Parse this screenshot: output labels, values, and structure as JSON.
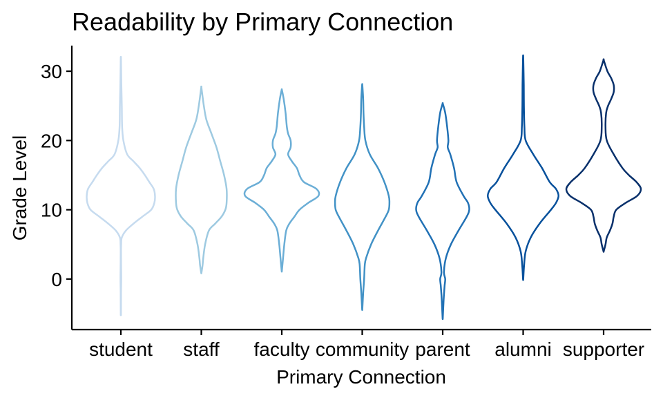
{
  "chart_data": {
    "type": "violin",
    "title": "Readability by Primary Connection",
    "xlabel": "Primary Connection",
    "ylabel": "Grade Level",
    "categories": [
      "student",
      "staff",
      "faculty",
      "community",
      "parent",
      "alumni",
      "supporter"
    ],
    "ylim": [
      -7.3,
      33.7
    ],
    "yticks": [
      0,
      10,
      20,
      30
    ],
    "grid": false,
    "legend": "none",
    "colors": [
      "#c6dbef",
      "#9ecae1",
      "#6baed6",
      "#4292c6",
      "#2171b5",
      "#08519c",
      "#08306b"
    ],
    "series": [
      {
        "category": "student",
        "min": -5,
        "max": 31.8,
        "profile": [
          [
            -5,
            0.2
          ],
          [
            -2,
            0.3
          ],
          [
            0,
            0.6
          ],
          [
            2,
            0.4
          ],
          [
            4,
            0.3
          ],
          [
            5,
            0.5
          ],
          [
            6,
            1.5
          ],
          [
            7,
            8
          ],
          [
            8,
            20
          ],
          [
            9,
            34
          ],
          [
            10,
            48
          ],
          [
            11,
            53
          ],
          [
            12,
            54
          ],
          [
            13,
            52
          ],
          [
            14,
            45
          ],
          [
            15,
            38
          ],
          [
            16,
            30
          ],
          [
            17,
            20
          ],
          [
            18,
            10
          ],
          [
            20,
            4
          ],
          [
            22,
            2
          ],
          [
            25,
            1.5
          ],
          [
            28,
            0.8
          ],
          [
            31.8,
            0.2
          ]
        ]
      },
      {
        "category": "staff",
        "min": 0.9,
        "max": 27.6,
        "profile": [
          [
            0.9,
            0.2
          ],
          [
            2,
            2
          ],
          [
            3,
            3
          ],
          [
            5,
            6
          ],
          [
            7,
            12
          ],
          [
            8,
            22
          ],
          [
            9,
            32
          ],
          [
            10,
            38
          ],
          [
            11,
            40
          ],
          [
            13,
            40
          ],
          [
            15,
            36
          ],
          [
            17,
            30
          ],
          [
            19,
            24
          ],
          [
            21,
            16
          ],
          [
            23,
            8
          ],
          [
            25,
            4
          ],
          [
            27.6,
            0.2
          ]
        ]
      },
      {
        "category": "faculty",
        "min": 1.2,
        "max": 27.3,
        "profile": [
          [
            1.2,
            0.2
          ],
          [
            3,
            2
          ],
          [
            5,
            4
          ],
          [
            7,
            7
          ],
          [
            8,
            12
          ],
          [
            9,
            20
          ],
          [
            10,
            28
          ],
          [
            11,
            42
          ],
          [
            12,
            58
          ],
          [
            13,
            55
          ],
          [
            14,
            35
          ],
          [
            15,
            28
          ],
          [
            16,
            24
          ],
          [
            17,
            16
          ],
          [
            18,
            10
          ],
          [
            19,
            14
          ],
          [
            20,
            14
          ],
          [
            21,
            10
          ],
          [
            22,
            8
          ],
          [
            24,
            6
          ],
          [
            26,
            3
          ],
          [
            27.3,
            0.2
          ]
        ]
      },
      {
        "category": "community",
        "min": -4.3,
        "max": 28.0,
        "profile": [
          [
            -4.3,
            0.2
          ],
          [
            -2,
            1.5
          ],
          [
            0,
            3
          ],
          [
            2,
            4
          ],
          [
            3,
            6
          ],
          [
            5,
            14
          ],
          [
            7,
            25
          ],
          [
            9,
            37
          ],
          [
            10,
            42
          ],
          [
            11,
            43
          ],
          [
            12,
            42
          ],
          [
            14,
            35
          ],
          [
            16,
            25
          ],
          [
            18,
            12
          ],
          [
            20,
            5
          ],
          [
            22,
            3
          ],
          [
            24,
            2
          ],
          [
            26,
            1.5
          ],
          [
            28,
            0.2
          ]
        ]
      },
      {
        "category": "parent",
        "min": -5.6,
        "max": 25.3,
        "profile": [
          [
            -5.6,
            0.2
          ],
          [
            -3,
            1.5
          ],
          [
            -1,
            3
          ],
          [
            0,
            4
          ],
          [
            1,
            2
          ],
          [
            3,
            5
          ],
          [
            5,
            13
          ],
          [
            7,
            25
          ],
          [
            9,
            38
          ],
          [
            10,
            42
          ],
          [
            11,
            40
          ],
          [
            12,
            33
          ],
          [
            14,
            22
          ],
          [
            16,
            18
          ],
          [
            18,
            12
          ],
          [
            19,
            8
          ],
          [
            20,
            9
          ],
          [
            22,
            7
          ],
          [
            24,
            4
          ],
          [
            25.3,
            0.2
          ]
        ]
      },
      {
        "category": "alumni",
        "min": 0,
        "max": 32.0,
        "profile": [
          [
            0,
            0.2
          ],
          [
            2,
            1.5
          ],
          [
            4,
            4
          ],
          [
            6,
            12
          ],
          [
            8,
            26
          ],
          [
            10,
            44
          ],
          [
            11,
            52
          ],
          [
            12,
            56
          ],
          [
            13,
            52
          ],
          [
            14,
            42
          ],
          [
            16,
            30
          ],
          [
            18,
            16
          ],
          [
            20,
            4
          ],
          [
            22,
            2
          ],
          [
            25,
            1.2
          ],
          [
            28,
            1
          ],
          [
            32,
            0.2
          ]
        ]
      },
      {
        "category": "supporter",
        "min": 4.0,
        "max": 31.6,
        "profile": [
          [
            4,
            0.2
          ],
          [
            5,
            3
          ],
          [
            6,
            5
          ],
          [
            7,
            10
          ],
          [
            8,
            14
          ],
          [
            9,
            16
          ],
          [
            10,
            20
          ],
          [
            11,
            35
          ],
          [
            12,
            53
          ],
          [
            13,
            59
          ],
          [
            14,
            52
          ],
          [
            15,
            40
          ],
          [
            16,
            30
          ],
          [
            18,
            16
          ],
          [
            20,
            5
          ],
          [
            22,
            3
          ],
          [
            24,
            4
          ],
          [
            25,
            7
          ],
          [
            26,
            12
          ],
          [
            27,
            16
          ],
          [
            28,
            16
          ],
          [
            29,
            12
          ],
          [
            30,
            6
          ],
          [
            31.6,
            0.2
          ]
        ]
      }
    ]
  }
}
